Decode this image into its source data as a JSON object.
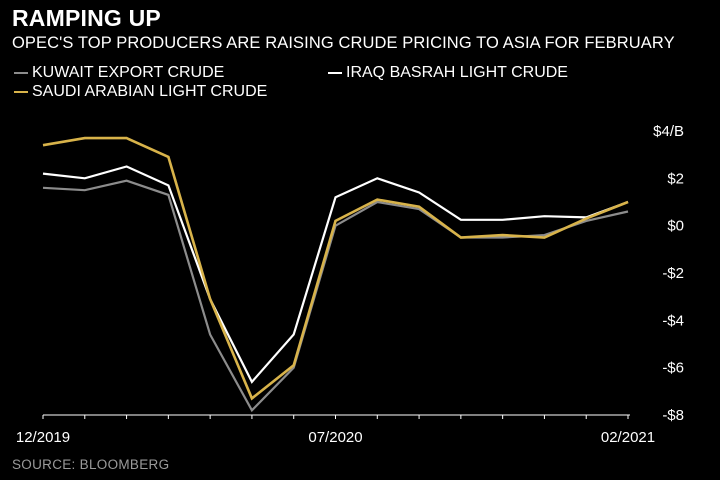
{
  "header": {
    "title": "RAMPING UP",
    "subtitle": "OPEC'S TOP PRODUCERS ARE RAISING CRUDE PRICING TO ASIA FOR FEBRUARY"
  },
  "legend": [
    {
      "label": "KUWAIT EXPORT CRUDE",
      "color": "#8c8c8c"
    },
    {
      "label": "IRAQ BASRAH LIGHT CRUDE",
      "color": "#ffffff"
    },
    {
      "label": "SAUDI ARABIAN LIGHT CRUDE",
      "color": "#d8b34a"
    }
  ],
  "footer": {
    "source": "SOURCE: BLOOMBERG"
  },
  "chart_data": {
    "type": "line",
    "title": "RAMPING UP",
    "x": [
      "12/2019",
      "01/2020",
      "02/2020",
      "03/2020",
      "04/2020",
      "05/2020",
      "06/2020",
      "07/2020",
      "08/2020",
      "09/2020",
      "10/2020",
      "11/2020",
      "12/2020",
      "01/2021",
      "02/2021"
    ],
    "x_tick_labels": [
      "12/2019",
      "07/2020",
      "02/2021"
    ],
    "y_tick_labels": [
      "$4/B",
      "$2",
      "$0",
      "-$2",
      "-$4",
      "-$6",
      "-$8"
    ],
    "y_ticks": [
      4,
      2,
      0,
      -2,
      -4,
      -6,
      -8
    ],
    "ylim": [
      -8,
      4
    ],
    "y_axis_position": "right",
    "grid": false,
    "series": [
      {
        "name": "KUWAIT EXPORT CRUDE",
        "color": "#8c8c8c",
        "values": [
          1.6,
          1.5,
          1.9,
          1.3,
          -4.6,
          -7.8,
          -6.0,
          0.0,
          1.0,
          0.7,
          -0.5,
          -0.5,
          -0.4,
          0.2,
          0.6
        ]
      },
      {
        "name": "IRAQ BASRAH LIGHT CRUDE",
        "color": "#ffffff",
        "values": [
          2.2,
          2.0,
          2.5,
          1.7,
          -3.1,
          -6.6,
          -4.6,
          1.2,
          2.0,
          1.4,
          0.25,
          0.25,
          0.4,
          0.35,
          1.0
        ]
      },
      {
        "name": "SAUDI ARABIAN LIGHT CRUDE",
        "color": "#d8b34a",
        "values": [
          3.4,
          3.7,
          3.7,
          2.9,
          -3.1,
          -7.3,
          -5.9,
          0.2,
          1.1,
          0.8,
          -0.5,
          -0.4,
          -0.5,
          0.3,
          1.0
        ]
      }
    ]
  }
}
